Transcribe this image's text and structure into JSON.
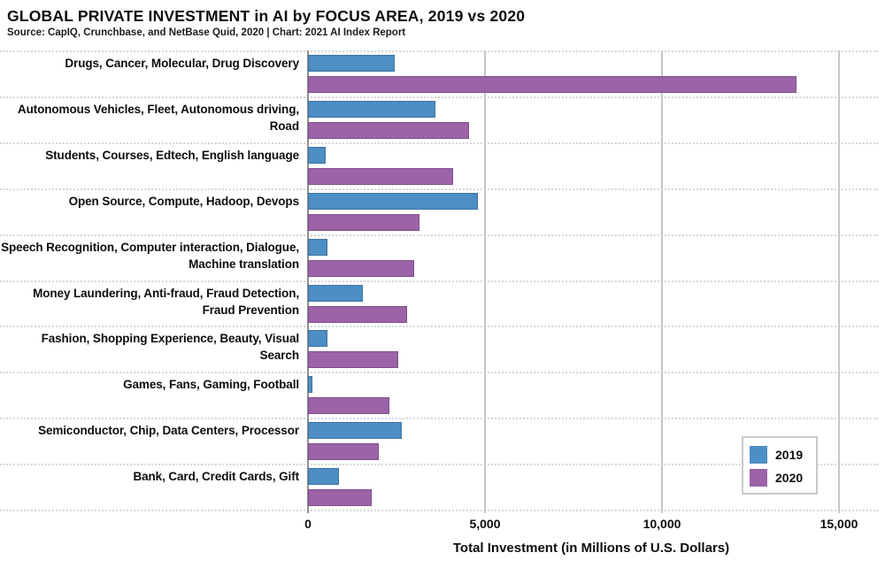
{
  "title": "GLOBAL PRIVATE INVESTMENT in AI by FOCUS AREA, 2019 vs 2020",
  "source": "Source: CapIQ, Crunchbase, and NetBase Quid, 2020 | Chart: 2021 AI Index Report",
  "colors": {
    "bar_2019": "#4d8ec4",
    "bar_2020": "#9c63a8",
    "gridline": "#c6c6c6",
    "zero_axis": "#8f8f8f",
    "separator_dotted": "#d6d6d6",
    "legend_border": "#c9c9c9",
    "text": "#0d0d0d"
  },
  "legend": {
    "items": [
      {
        "label": "2019",
        "color": "#4d8ec4"
      },
      {
        "label": "2020",
        "color": "#9c63a8"
      }
    ]
  },
  "chart_data": {
    "type": "bar",
    "orientation": "horizontal",
    "title": "GLOBAL PRIVATE INVESTMENT in AI by FOCUS AREA, 2019 vs 2020",
    "xlabel": "Total Investment (in Millions of U.S. Dollars)",
    "unit": "Millions of U.S. Dollars",
    "xlim": [
      0,
      16000
    ],
    "xticks": [
      {
        "value": 0,
        "label": "0"
      },
      {
        "value": 5000,
        "label": "5,000"
      },
      {
        "value": 10000,
        "label": "10,000"
      },
      {
        "value": 15000,
        "label": "15,000"
      }
    ],
    "grid": "vertical solid gridlines at ticks; dotted horizontal separators between categories",
    "legend_position": "right-center",
    "categories": [
      "Drugs, Cancer, Molecular, Drug Discovery",
      "Autonomous Vehicles, Fleet, Autonomous driving, Road",
      "Students, Courses, Edtech, English language",
      "Open Source, Compute, Hadoop, Devops",
      "Speech Recognition, Computer interaction, Dialogue, Machine translation",
      "Money Laundering, Anti-fraud, Fraud Detection, Fraud Prevention",
      "Fashion, Shopping Experience, Beauty, Visual Search",
      "Games, Fans, Gaming, Football",
      "Semiconductor, Chip, Data Centers, Processor",
      "Bank, Card, Credit Cards, Gift"
    ],
    "series": [
      {
        "name": "2019",
        "color": "#4d8ec4",
        "values": [
          2450,
          3600,
          500,
          4800,
          550,
          1550,
          550,
          130,
          2650,
          880
        ]
      },
      {
        "name": "2020",
        "color": "#9c63a8",
        "values": [
          13800,
          4550,
          4100,
          3150,
          3000,
          2800,
          2550,
          2300,
          2000,
          1800
        ]
      }
    ]
  }
}
